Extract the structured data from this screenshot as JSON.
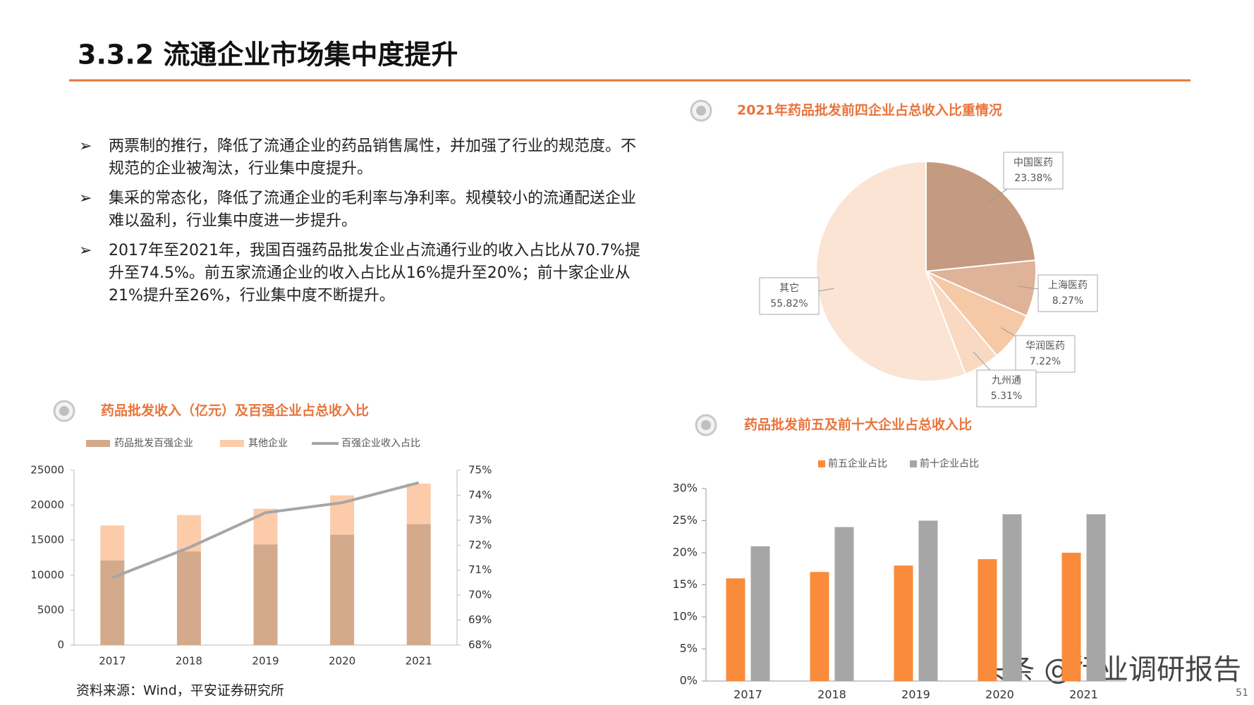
{
  "header": {
    "title": "3.3.2 流通企业市场集中度提升"
  },
  "bullets": [
    "两票制的推行，降低了流通企业的药品销售属性，并加强了行业的规范度。不规范的企业被淘汰，行业集中度提升。",
    "集采的常态化，降低了流通企业的毛利率与净利率。规模较小的流通配送企业难以盈利，行业集中度进一步提升。",
    "2017年至2021年，我国百强药品批发企业占流通行业的收入占比从70.7%提升至74.5%。前五家流通企业的收入占比从16%提升至20%；前十家企业从21%提升至26%，行业集中度不断提升。"
  ],
  "source": "资料来源：Wind，平安证券研究所",
  "page_number": "51",
  "watermark": "头条 @行业调研报告",
  "chart_data": [
    {
      "type": "pie",
      "title": "2021年药品批发前四企业占总收入比重情况",
      "categories": [
        "中国医药",
        "上海医药",
        "华润医药",
        "九州通",
        "其它"
      ],
      "values": [
        23.38,
        8.27,
        7.22,
        5.31,
        55.82
      ],
      "value_labels": [
        "23.38%",
        "8.27%",
        "7.22%",
        "5.31%",
        "55.82%"
      ],
      "colors": [
        "#c49b80",
        "#deb397",
        "#f5c8a6",
        "#f9d9c2",
        "#fbe4d4"
      ]
    },
    {
      "type": "combo",
      "title": "药品批发收入（亿元）及百强企业占总收入比",
      "categories": [
        "2017",
        "2018",
        "2019",
        "2020",
        "2021"
      ],
      "series": [
        {
          "name": "药品批发百强企业",
          "color": "#d4aa8c",
          "values": [
            12100,
            13400,
            14400,
            15800,
            17300
          ]
        },
        {
          "name": "其他企业",
          "color": "#fcccaa",
          "values": [
            5000,
            5200,
            5100,
            5600,
            5800
          ]
        },
        {
          "name": "百强企业收入占比",
          "color": "#a6a6a6",
          "axis": "y2",
          "values": [
            70.7,
            71.9,
            73.3,
            73.7,
            74.5
          ]
        }
      ],
      "ylim": [
        0,
        25000
      ],
      "yticks": [
        0,
        5000,
        10000,
        15000,
        20000,
        25000
      ],
      "y2lim": [
        68,
        75
      ],
      "y2ticks": [
        {
          "value": 68,
          "label": "68%"
        },
        {
          "value": 69,
          "label": "69%"
        },
        {
          "value": 70,
          "label": "70%"
        },
        {
          "value": 71,
          "label": "71%"
        },
        {
          "value": 72,
          "label": "72%"
        },
        {
          "value": 73,
          "label": "73%"
        },
        {
          "value": 74,
          "label": "74%"
        },
        {
          "value": 75,
          "label": "75%"
        }
      ]
    },
    {
      "type": "bar",
      "title": "药品批发前五及前十大企业占总收入比",
      "categories": [
        "2017",
        "2018",
        "2019",
        "2020",
        "2021"
      ],
      "series": [
        {
          "name": "前五企业占比",
          "color": "#f98b3b",
          "values": [
            16,
            17,
            18,
            19,
            20
          ]
        },
        {
          "name": "前十企业占比",
          "color": "#a6a6a6",
          "values": [
            21,
            24,
            25,
            26,
            26
          ]
        }
      ],
      "ylim": [
        0,
        30
      ],
      "yticks": [
        {
          "value": 0,
          "label": "0%"
        },
        {
          "value": 5,
          "label": "5%"
        },
        {
          "value": 10,
          "label": "10%"
        },
        {
          "value": 15,
          "label": "15%"
        },
        {
          "value": 20,
          "label": "20%"
        },
        {
          "value": 25,
          "label": "25%"
        },
        {
          "value": 30,
          "label": "30%"
        }
      ]
    }
  ]
}
